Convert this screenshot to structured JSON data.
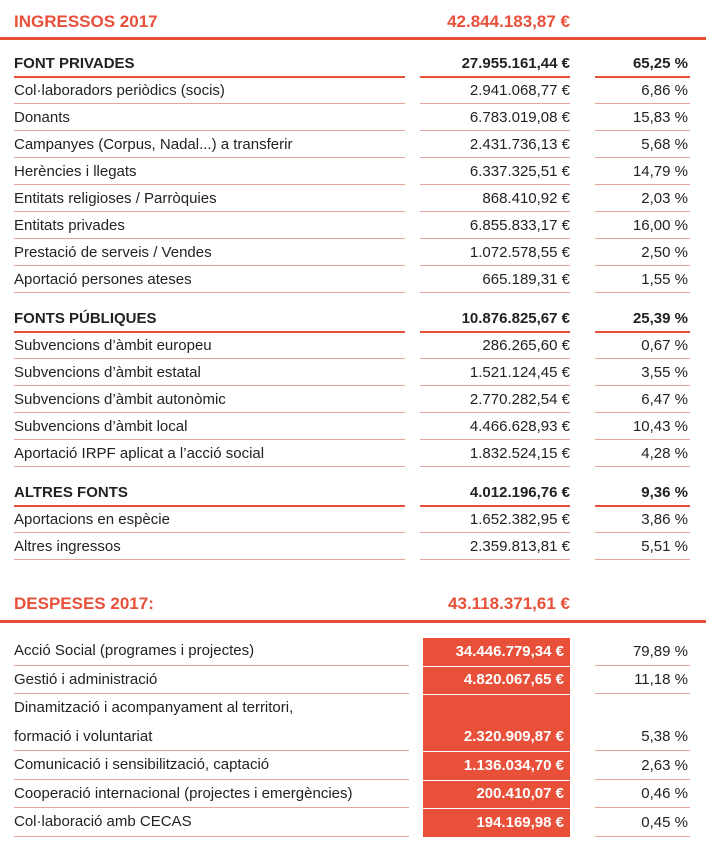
{
  "ingressos": {
    "title": "INGRESSOS 2017",
    "total": "42.844.183,87 €",
    "sections": [
      {
        "name": "FONT PRIVADES",
        "amount": "27.955.161,44 €",
        "percent": "65,25 %",
        "rows": [
          {
            "label": "Col·laboradors periòdics (socis)",
            "amount": "2.941.068,77 €",
            "percent": "6,86 %"
          },
          {
            "label": "Donants",
            "amount": "6.783.019,08 €",
            "percent": "15,83 %"
          },
          {
            "label": "Campanyes (Corpus, Nadal...) a transferir",
            "amount": "2.431.736,13 €",
            "percent": "5,68 %"
          },
          {
            "label": "Herències i llegats",
            "amount": "6.337.325,51 €",
            "percent": "14,79 %"
          },
          {
            "label": "Entitats religioses / Parròquies",
            "amount": "868.410,92 €",
            "percent": "2,03 %"
          },
          {
            "label": "Entitats privades",
            "amount": "6.855.833,17 €",
            "percent": "16,00 %"
          },
          {
            "label": "Prestació de serveis / Vendes",
            "amount": "1.072.578,55 €",
            "percent": "2,50 %"
          },
          {
            "label": "Aportació persones ateses",
            "amount": "665.189,31 €",
            "percent": "1,55 %"
          }
        ]
      },
      {
        "name": "FONTS PÚBLIQUES",
        "amount": "10.876.825,67 €",
        "percent": "25,39 %",
        "rows": [
          {
            "label": "Subvencions d’àmbit europeu",
            "amount": "286.265,60 €",
            "percent": "0,67 %"
          },
          {
            "label": "Subvencions d’àmbit estatal",
            "amount": "1.521.124,45 €",
            "percent": "3,55 %"
          },
          {
            "label": "Subvencions d’àmbit autonòmic",
            "amount": "2.770.282,54 €",
            "percent": "6,47 %"
          },
          {
            "label": "Subvencions d’àmbit local",
            "amount": "4.466.628,93 €",
            "percent": "10,43 %"
          },
          {
            "label": "Aportació IRPF aplicat a l’acció social",
            "amount": "1.832.524,15 €",
            "percent": "4,28 %"
          }
        ]
      },
      {
        "name": "ALTRES FONTS",
        "amount": "4.012.196,76 €",
        "percent": "9,36 %",
        "rows": [
          {
            "label": "Aportacions en espècie",
            "amount": "1.652.382,95 €",
            "percent": "3,86 %"
          },
          {
            "label": "Altres ingressos",
            "amount": "2.359.813,81 €",
            "percent": "5,51 %"
          }
        ]
      }
    ]
  },
  "despeses": {
    "title": "DESPESES 2017:",
    "total": "43.118.371,61 €",
    "rows": [
      {
        "label": [
          "Acció Social (programes i projectes)"
        ],
        "amount": "34.446.779,34 €",
        "percent": "79,89 %"
      },
      {
        "label": [
          "Gestió i administració"
        ],
        "amount": "4.820.067,65 €",
        "percent": "11,18 %"
      },
      {
        "label": [
          "Dinamització i acompanyament al territori,",
          "formació i voluntariat"
        ],
        "amount": "2.320.909,87 €",
        "percent": "5,38 %"
      },
      {
        "label": [
          "Comunicació i sensibilització, captació"
        ],
        "amount": "1.136.034,70 €",
        "percent": "2,63 %"
      },
      {
        "label": [
          "Cooperació internacional (projectes i emergències)"
        ],
        "amount": "200.410,07 €",
        "percent": "0,46 %"
      },
      {
        "label": [
          "Col·laboració amb CECAS"
        ],
        "amount": "194.169,98 €",
        "percent": "0,45 %"
      }
    ]
  }
}
